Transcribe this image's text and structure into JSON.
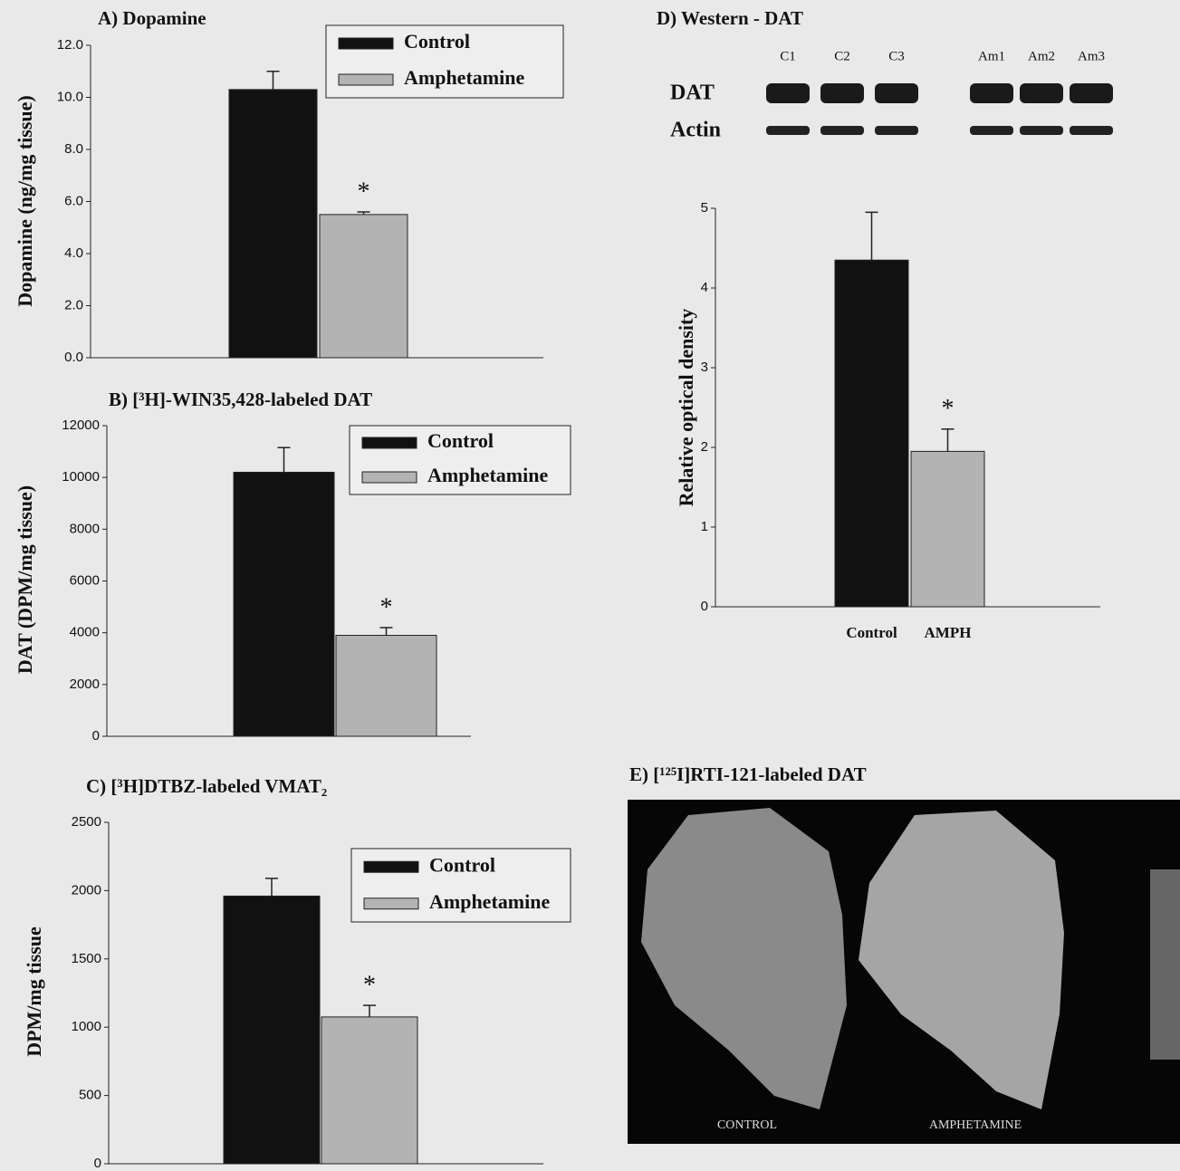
{
  "chart_data": [
    {
      "type": "bar",
      "title": "A) Dopamine",
      "y_label": "Dopamine (ng/mg tissue)",
      "categories": [
        null
      ],
      "series": [
        {
          "name": "Control",
          "color": "#111111",
          "values": [
            10.3
          ],
          "errors": [
            0.7
          ]
        },
        {
          "name": "Amphetamine",
          "color": "#b3b3b3",
          "values": [
            5.5
          ],
          "errors": [
            0.1
          ]
        }
      ],
      "ylim": [
        0,
        12
      ],
      "yticks": [
        {
          "value": 0,
          "label": "0.0"
        },
        {
          "value": 2,
          "label": "2.0"
        },
        {
          "value": 4,
          "label": "4.0"
        },
        {
          "value": 6,
          "label": "6.0"
        },
        {
          "value": 8,
          "label": "8.0"
        },
        {
          "value": 10,
          "label": "10.0"
        },
        {
          "value": 12,
          "label": "12.0"
        }
      ],
      "annotation": "*",
      "legend": "top-right"
    },
    {
      "type": "bar",
      "title": "B) [³H]-WIN35,428-labeled DAT",
      "y_label": "DAT (DPM/mg tissue)",
      "categories": [
        null
      ],
      "series": [
        {
          "name": "Control",
          "color": "#111111",
          "values": [
            10200
          ],
          "errors": [
            950
          ]
        },
        {
          "name": "Amphetamine",
          "color": "#b3b3b3",
          "values": [
            3900
          ],
          "errors": [
            300
          ]
        }
      ],
      "ylim": [
        0,
        12000
      ],
      "yticks": [
        0,
        2000,
        4000,
        6000,
        8000,
        10000,
        12000
      ],
      "annotation": "*",
      "legend": "top-right"
    },
    {
      "type": "bar",
      "title": "C) [³H]DTBZ-labeled VMAT₂",
      "y_label": "DPM/mg tissue",
      "categories": [
        null
      ],
      "series": [
        {
          "name": "Control",
          "color": "#111111",
          "values": [
            1960
          ],
          "errors": [
            130
          ]
        },
        {
          "name": "Amphetamine",
          "color": "#b3b3b3",
          "values": [
            1075
          ],
          "errors": [
            85
          ]
        }
      ],
      "ylim": [
        0,
        2500
      ],
      "yticks": [
        0,
        500,
        1000,
        1500,
        2000,
        2500
      ],
      "annotation": "*",
      "legend": "top-right"
    },
    {
      "type": "bar",
      "title": "D) Western - DAT",
      "y_label": "Relative optical density",
      "categories": [
        "Control",
        "AMPH"
      ],
      "values": [
        4.35,
        1.95
      ],
      "errors": [
        0.6,
        0.28
      ],
      "colors": [
        "#111111",
        "#b3b3b3"
      ],
      "ylim": [
        0,
        5
      ],
      "yticks": [
        0,
        1,
        2,
        3,
        4,
        5
      ],
      "annotation": "*",
      "blot": {
        "lanes": [
          "C1",
          "C2",
          "C3",
          "Am1",
          "Am2",
          "Am3"
        ],
        "rows": [
          "DAT",
          "Actin"
        ]
      }
    }
  ],
  "image_panel": {
    "title": "E) [¹²⁵I]RTI-121-labeled DAT",
    "labels": [
      "CONTROL",
      "AMPHETAMINE"
    ]
  }
}
